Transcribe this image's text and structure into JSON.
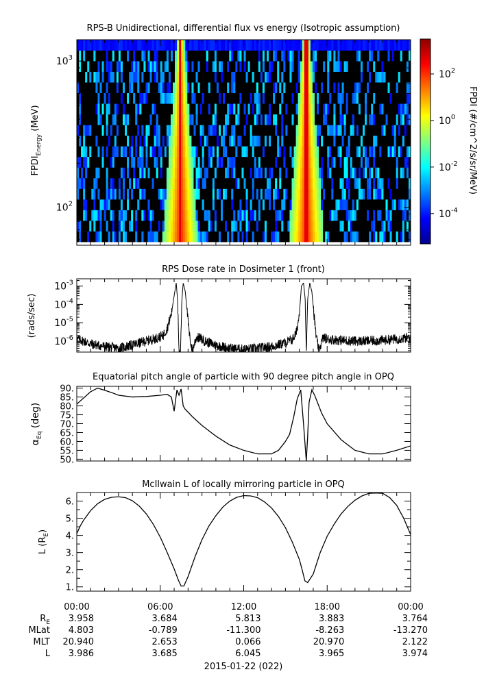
{
  "chart_data": [
    {
      "type": "heatmap",
      "title": "RPS-B  Unidirectional, differential flux vs energy (Isotropic assumption)",
      "ylabel": {
        "main": "FPDI",
        "sub": "Energy",
        "unit": " (MeV)"
      },
      "yscale": "log",
      "ylim": [
        55,
        1400
      ],
      "yticks": [
        {
          "base": "10",
          "exp": "2",
          "value": 100
        },
        {
          "base": "10",
          "exp": "3",
          "value": 1000
        }
      ],
      "xlim_hours": [
        0,
        24
      ],
      "colorbar": {
        "label": "FPDI (#/cm^2/s/sr/MeV)",
        "scale": "log",
        "range_log10": [
          -5.3,
          3.5
        ],
        "ticks": [
          {
            "base": "10",
            "exp": "2",
            "value": 2
          },
          {
            "base": "10",
            "exp": "0",
            "value": 0
          },
          {
            "base": "10",
            "exp": "-2",
            "value": -2
          },
          {
            "base": "10",
            "exp": "-4",
            "value": -4
          }
        ],
        "colors": [
          "#00008f",
          "#0000ff",
          "#0080ff",
          "#00ffff",
          "#80ff80",
          "#ffff00",
          "#ff8000",
          "#ff0000",
          "#8f0000"
        ]
      },
      "bright_bands_hours": [
        7.45,
        16.5
      ]
    },
    {
      "type": "line",
      "title": "RPS  Dose rate in Dosimeter 1 (front)",
      "ylabel": "(rads/sec)",
      "yscale": "log",
      "ylim": [
        2.5e-07,
        0.0025
      ],
      "yticks": [
        {
          "base": "10",
          "exp": "-3",
          "value": 0.001
        },
        {
          "base": "10",
          "exp": "-4",
          "value": 0.0001
        },
        {
          "base": "10",
          "exp": "-5",
          "value": 1e-05
        },
        {
          "base": "10",
          "exp": "-6",
          "value": 1e-06
        }
      ],
      "series": [
        {
          "x": [
            0,
            0.5,
            1,
            2,
            3,
            4,
            5,
            5.8,
            6.2,
            6.5,
            6.8,
            7.0,
            7.15,
            7.25,
            7.35,
            7.45,
            7.55,
            7.65,
            7.8,
            7.95,
            8.1,
            8.3,
            8.6,
            8.9,
            9.2,
            10,
            11,
            12,
            13,
            14,
            15,
            15.5,
            15.8,
            16.0,
            16.15,
            16.3,
            16.42,
            16.5,
            16.6,
            16.75,
            16.9,
            17.05,
            17.2,
            17.4,
            17.7,
            18,
            19,
            20,
            21,
            22,
            23,
            24
          ],
          "y": [
            1.3e-06,
            1e-06,
            7e-07,
            5e-07,
            4e-07,
            6e-07,
            1e-06,
            1.5e-06,
            2e-06,
            5e-06,
            3e-05,
            0.0003,
            0.0015,
            0.00015,
            3e-07,
            3e-07,
            0.00015,
            0.0015,
            0.0005,
            3e-05,
            2e-06,
            3e-07,
            1.6e-06,
            1.4e-06,
            1e-06,
            6e-07,
            4e-07,
            3.5e-07,
            4e-07,
            5e-07,
            8e-07,
            1.2e-06,
            3e-06,
            3e-05,
            0.001,
            0.0015,
            0.0002,
            3e-07,
            0.0002,
            0.0015,
            0.0005,
            3e-05,
            2e-06,
            3e-07,
            1.5e-06,
            1.3e-06,
            1.1e-06,
            1e-06,
            1e-06,
            1.1e-06,
            1.3e-06,
            1.5e-06
          ]
        }
      ]
    },
    {
      "type": "line",
      "title": "Equatorial pitch angle of particle with 90 degree pitch angle in OPQ",
      "ylabel": {
        "main": "α",
        "sub": "Eq",
        "unit": " (deg)"
      },
      "ylim": [
        49,
        91
      ],
      "yticks": [
        "90.",
        "85.",
        "80.",
        "75.",
        "70.",
        "65.",
        "60.",
        "55.",
        "50."
      ],
      "series": [
        {
          "x": [
            0,
            0.5,
            1,
            1.5,
            2,
            2.5,
            3,
            4,
            5,
            6,
            6.5,
            6.8,
            7.0,
            7.2,
            7.35,
            7.5,
            7.65,
            7.8,
            8.0,
            8.3,
            9,
            10,
            11,
            12,
            13,
            14,
            14.5,
            15,
            15.3,
            15.6,
            15.85,
            16.1,
            16.3,
            16.5,
            16.6,
            16.7,
            16.9,
            17.1,
            17.3,
            17.6,
            18,
            19,
            20,
            21,
            22,
            23,
            24
          ],
          "y": [
            81,
            84.5,
            88,
            90,
            88.8,
            87.5,
            86,
            85,
            85.3,
            86,
            86.5,
            85,
            77,
            89,
            86,
            89.5,
            80,
            78,
            76.5,
            74,
            69,
            63,
            58,
            55,
            53,
            53,
            55,
            60,
            64,
            74,
            84,
            89,
            70,
            49,
            63,
            82,
            89,
            86,
            82,
            76,
            70,
            61,
            55,
            53,
            53,
            55,
            57.5
          ]
        }
      ]
    },
    {
      "type": "line",
      "title": "McIlwain L of locally mirroring particle in OPQ",
      "ylabel": {
        "main": "L (R",
        "sub": "E",
        "unit": ")"
      },
      "ylim": [
        0.75,
        6.5
      ],
      "yticks": [
        "6.",
        "5.",
        "4.",
        "3.",
        "2.",
        "1."
      ],
      "series": [
        {
          "x": [
            0,
            0.25,
            0.5,
            1,
            1.5,
            2,
            2.5,
            3,
            3.5,
            4,
            4.5,
            5,
            5.5,
            6,
            6.5,
            7,
            7.3,
            7.5,
            7.7,
            8,
            8.5,
            9,
            9.5,
            10,
            10.5,
            11,
            11.5,
            12,
            12.5,
            13,
            13.5,
            14,
            14.5,
            15,
            15.5,
            16,
            16.2,
            16.4,
            16.6,
            17,
            17.5,
            18,
            18.5,
            19,
            19.5,
            20,
            20.5,
            21,
            21.5,
            22,
            22.5,
            23,
            23.5,
            24
          ],
          "y": [
            4.1,
            4.55,
            4.9,
            5.45,
            5.85,
            6.1,
            6.22,
            6.25,
            6.2,
            6.02,
            5.7,
            5.25,
            4.65,
            3.9,
            3.0,
            2.05,
            1.4,
            1.05,
            1.05,
            1.6,
            2.75,
            3.75,
            4.55,
            5.15,
            5.65,
            6.0,
            6.22,
            6.32,
            6.3,
            6.2,
            5.95,
            5.6,
            5.1,
            4.45,
            3.6,
            2.6,
            2.0,
            1.35,
            1.25,
            1.75,
            3.0,
            3.95,
            4.65,
            5.25,
            5.7,
            6.05,
            6.3,
            6.45,
            6.47,
            6.45,
            6.2,
            5.75,
            5.0,
            4.05
          ]
        }
      ]
    }
  ],
  "time_axis": {
    "tick_labels": [
      "00:00",
      "06:00",
      "12:00",
      "18:00",
      "00:00"
    ],
    "tick_hours": [
      0,
      6,
      12,
      18,
      24
    ],
    "minor_step_hours": 1
  },
  "ephemeris": {
    "rows": [
      {
        "label": "R",
        "sub": "E",
        "values": [
          "3.958",
          "3.684",
          "5.813",
          "3.883",
          "3.764"
        ]
      },
      {
        "label": "MLat",
        "sub": "",
        "values": [
          "4.803",
          "-0.789",
          "-11.300",
          "-8.263",
          "-13.270"
        ]
      },
      {
        "label": "MLT",
        "sub": "",
        "values": [
          "20.940",
          "2.653",
          "0.066",
          "20.970",
          "2.122"
        ]
      },
      {
        "label": "L",
        "sub": "",
        "values": [
          "3.986",
          "3.685",
          "6.045",
          "3.965",
          "3.974"
        ]
      }
    ]
  },
  "date_label": "2015-01-22 (022)"
}
